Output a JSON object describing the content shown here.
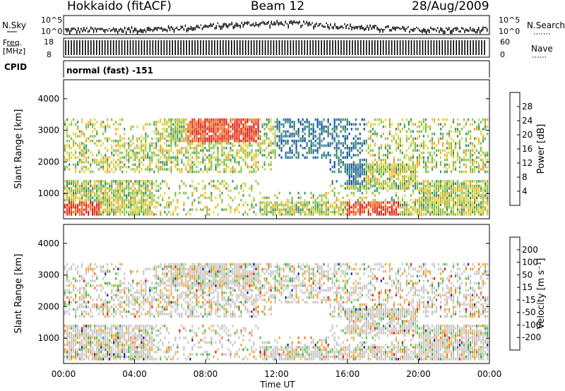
{
  "header": {
    "title": "Hokkaido (fitACF)",
    "beam": "Beam 12",
    "date": "28/Aug/2009"
  },
  "sky_panel": {
    "left_label": "N.Sky",
    "right_label": "N.Search",
    "left_ticks": [
      "10^5",
      "10^0"
    ],
    "right_ticks": [
      "10^5",
      "10^0"
    ]
  },
  "freq_panel": {
    "left_label_top": "Freq.",
    "left_label_unit": "[MHz]",
    "left_ticks": [
      "18",
      "8"
    ],
    "right_label": "Nave",
    "right_ticks": [
      "60",
      "0"
    ]
  },
  "cpid": {
    "label": "CPID",
    "value": "normal (fast) -151"
  },
  "chart_data": [
    {
      "type": "heatmap",
      "name": "power",
      "ylabel": "Slant Range [km]",
      "xlabel": "",
      "ylim": [
        200,
        4600
      ],
      "yticks": [
        "1000",
        "2000",
        "3000",
        "4000"
      ],
      "colorbar_label": "Power [dB]",
      "colorbar_ticks": [
        "28",
        "24",
        "20",
        "16",
        "12",
        "8",
        "4"
      ],
      "colorbar_colors": [
        "#1c1cf0",
        "#1a4fa8",
        "#2f7c96",
        "#3f8f6a",
        "#7bc24a",
        "#e0d23c",
        "#f5a623",
        "#f0721c",
        "#e8341c",
        "#d81818"
      ]
    },
    {
      "type": "heatmap",
      "name": "velocity",
      "ylabel": "Slant Range [km]",
      "xlabel": "Time UT",
      "ylim": [
        200,
        4600
      ],
      "yticks": [
        "1000",
        "2000",
        "3000",
        "4000"
      ],
      "xticks": [
        "00:00",
        "04:00",
        "08:00",
        "12:00",
        "16:00",
        "20:00",
        "00:00"
      ],
      "colorbar_label": "Velocity [m s⁻¹]",
      "colorbar_ticks": [
        "200",
        "100",
        "50",
        "15",
        "-15",
        "-50",
        "-100",
        "-200"
      ],
      "colorbar_colors": [
        "#1c1cb4",
        "#2f55b0",
        "#3f8f6a",
        "#4ec23a",
        "#c8c8c8",
        "#f5a623",
        "#f07a1a",
        "#e8401a",
        "#e01414"
      ]
    }
  ]
}
